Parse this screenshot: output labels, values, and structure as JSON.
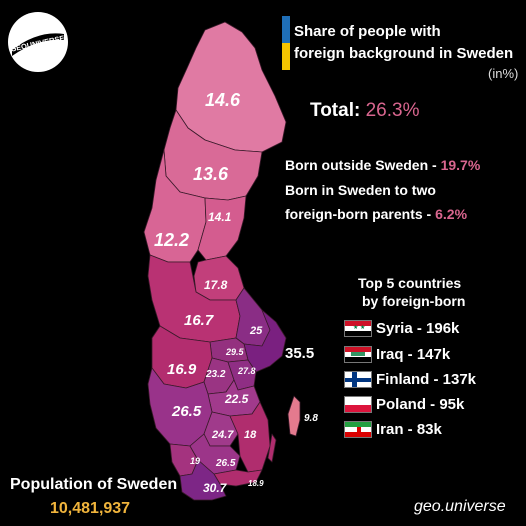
{
  "logo": {
    "text": "GEOUNIVERSE"
  },
  "title": {
    "line1": "Share of people with",
    "line2": "foreign background in Sweden",
    "unit": "(in%)",
    "bar_colors": [
      "#1f6fb8",
      "#f5c400"
    ]
  },
  "summary": {
    "total_label": "Total:",
    "total_value": "26.3%",
    "born_outside_label": "Born outside Sweden -",
    "born_outside_value": "19.7%",
    "two_parents_label_1": "Born in Sweden to two",
    "two_parents_label_2": "foreign-born parents -",
    "two_parents_value": "6.2%"
  },
  "top5": {
    "title_1": "Top 5 countries",
    "title_2": "by foreign-born",
    "items": [
      {
        "label": "Syria - 196k",
        "flag": "syria-flag"
      },
      {
        "label": "Iraq - 147k",
        "flag": "iraq-flag"
      },
      {
        "label": "Finland - 137k",
        "flag": "finland-flag"
      },
      {
        "label": "Poland - 95k",
        "flag": "poland-flag"
      },
      {
        "label": "Iran - 83k",
        "flag": "iran-flag"
      }
    ]
  },
  "map_labels": [
    {
      "id": "norrbotten",
      "value": "14.6"
    },
    {
      "id": "vasterbotten",
      "value": "13.6"
    },
    {
      "id": "jamtland",
      "value": "12.2"
    },
    {
      "id": "vasternorrland",
      "value": "14.1"
    },
    {
      "id": "gavleborg",
      "value": "17.8"
    },
    {
      "id": "dalarna",
      "value": "16.7"
    },
    {
      "id": "uppsala",
      "value": "25"
    },
    {
      "id": "stockholm",
      "value": "35.5"
    },
    {
      "id": "vastmanland",
      "value": "29.5"
    },
    {
      "id": "varmland",
      "value": "16.9"
    },
    {
      "id": "orebro",
      "value": "23.2"
    },
    {
      "id": "sodermanland",
      "value": "27.8"
    },
    {
      "id": "ostergotland",
      "value": "22.5"
    },
    {
      "id": "vastra-gotaland",
      "value": "26.5"
    },
    {
      "id": "jonkoping",
      "value": "24.7"
    },
    {
      "id": "kalmar",
      "value": "18"
    },
    {
      "id": "halland",
      "value": "19"
    },
    {
      "id": "kronoberg",
      "value": "26.5"
    },
    {
      "id": "skane",
      "value": "30.7"
    },
    {
      "id": "blekinge",
      "value": "18.9"
    },
    {
      "id": "gotland",
      "value": "9.8"
    }
  ],
  "population": {
    "label": "Population of Sweden",
    "value": "10,481,937",
    "value_color": "#f0b43c"
  },
  "credit": "geo.universe"
}
